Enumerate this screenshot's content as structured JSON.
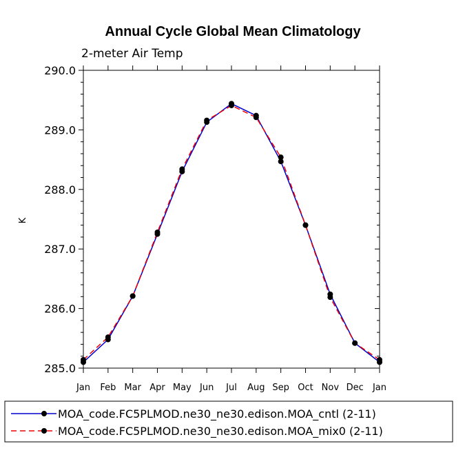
{
  "chart_data": {
    "type": "line",
    "title": "Annual Cycle Global Mean Climatology",
    "subtitle": "2-meter Air Temp",
    "ylabel": "K",
    "xlabel": "",
    "ylim": [
      285.0,
      290.0
    ],
    "yticks": [
      "285.0",
      "286.0",
      "287.0",
      "288.0",
      "289.0",
      "290.0"
    ],
    "categories": [
      "Jan",
      "Feb",
      "Mar",
      "Apr",
      "May",
      "Jun",
      "Jul",
      "Aug",
      "Sep",
      "Oct",
      "Nov",
      "Dec",
      "Jan"
    ],
    "series": [
      {
        "name": "MOA_code.FC5PLMOD.ne30_ne30.edison.MOA_cntl (2-11)",
        "color": "#0000cc",
        "style": "solid",
        "values": [
          285.1,
          285.48,
          286.21,
          287.25,
          288.3,
          289.13,
          289.44,
          289.24,
          288.47,
          287.4,
          286.24,
          285.42,
          285.1
        ]
      },
      {
        "name": "MOA_code.FC5PLMOD.ne30_ne30.edison.MOA_mix0 (2-11)",
        "color": "#ee0000",
        "style": "dashed",
        "values": [
          285.14,
          285.52,
          286.21,
          287.28,
          288.34,
          289.16,
          289.41,
          289.21,
          288.54,
          287.4,
          286.19,
          285.42,
          285.14
        ]
      }
    ],
    "legend_position": "bottom"
  }
}
